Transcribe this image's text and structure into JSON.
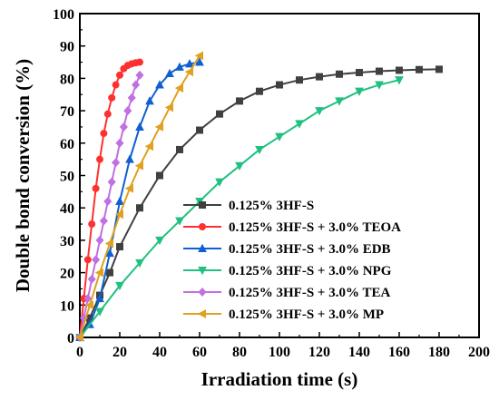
{
  "chart_data": {
    "type": "line",
    "xlabel": "Irradiation time (s)",
    "ylabel": "Double bond conversion (%)",
    "xlim": [
      0,
      200
    ],
    "ylim": [
      0,
      100
    ],
    "xticks": [
      "0",
      "20",
      "40",
      "60",
      "80",
      "100",
      "120",
      "140",
      "160",
      "180",
      "200"
    ],
    "yticks": [
      "0",
      "10",
      "20",
      "30",
      "40",
      "50",
      "60",
      "70",
      "80",
      "90",
      "100"
    ],
    "legend_position": "lower-right",
    "grid": false,
    "series": [
      {
        "name": "0.125% 3HF-S",
        "color": "#404040",
        "marker": "square",
        "x": [
          0,
          5,
          10,
          15,
          20,
          30,
          40,
          50,
          60,
          70,
          80,
          90,
          100,
          110,
          120,
          130,
          140,
          150,
          160,
          170,
          180
        ],
        "y": [
          0,
          6,
          13,
          20,
          28,
          40,
          50,
          58,
          64,
          69,
          73,
          76,
          78,
          79.5,
          80.5,
          81.3,
          81.8,
          82.2,
          82.5,
          82.7,
          82.8
        ]
      },
      {
        "name": "0.125% 3HF-S + 3.0% TEOA",
        "color": "#ff3030",
        "marker": "circle",
        "x": [
          0,
          2,
          4,
          6,
          8,
          10,
          12,
          14,
          16,
          18,
          20,
          22,
          24,
          26,
          28,
          30
        ],
        "y": [
          0,
          12,
          24,
          35,
          46,
          55,
          63,
          69,
          74,
          78,
          81,
          83,
          84,
          84.5,
          84.8,
          85
        ]
      },
      {
        "name": "0.125% 3HF-S + 3.0% EDB",
        "color": "#1060d0",
        "marker": "triangle-up",
        "x": [
          0,
          5,
          10,
          15,
          20,
          25,
          30,
          35,
          40,
          45,
          50,
          55,
          60
        ],
        "y": [
          0,
          4,
          12,
          26,
          42,
          55,
          65,
          73,
          78,
          81.5,
          83.5,
          84.5,
          85
        ]
      },
      {
        "name": "0.125% 3HF-S + 3.0% NPG",
        "color": "#20c080",
        "marker": "triangle-down",
        "x": [
          0,
          10,
          20,
          30,
          40,
          50,
          60,
          70,
          80,
          90,
          100,
          110,
          120,
          130,
          140,
          150,
          160
        ],
        "y": [
          0,
          8,
          16,
          23,
          30,
          36,
          42,
          48,
          53,
          58,
          62,
          66,
          70,
          73,
          76,
          78,
          79.5
        ]
      },
      {
        "name": "0.125% 3HF-S + 3.0% TEA",
        "color": "#c070e0",
        "marker": "diamond",
        "x": [
          0,
          2,
          4,
          6,
          8,
          10,
          12,
          14,
          16,
          18,
          20,
          22,
          24,
          26,
          28,
          30
        ],
        "y": [
          0,
          6,
          12,
          18,
          24,
          30,
          36,
          42,
          48,
          54,
          60,
          65,
          70,
          74,
          78,
          81
        ]
      },
      {
        "name": "0.125% 3HF-S + 3.0% MP",
        "color": "#e0a020",
        "marker": "triangle-left",
        "x": [
          0,
          5,
          10,
          15,
          20,
          25,
          30,
          35,
          40,
          45,
          50,
          55,
          60
        ],
        "y": [
          0,
          10,
          20,
          29,
          38,
          46,
          53,
          59,
          65,
          71,
          77,
          82,
          87
        ]
      }
    ]
  }
}
